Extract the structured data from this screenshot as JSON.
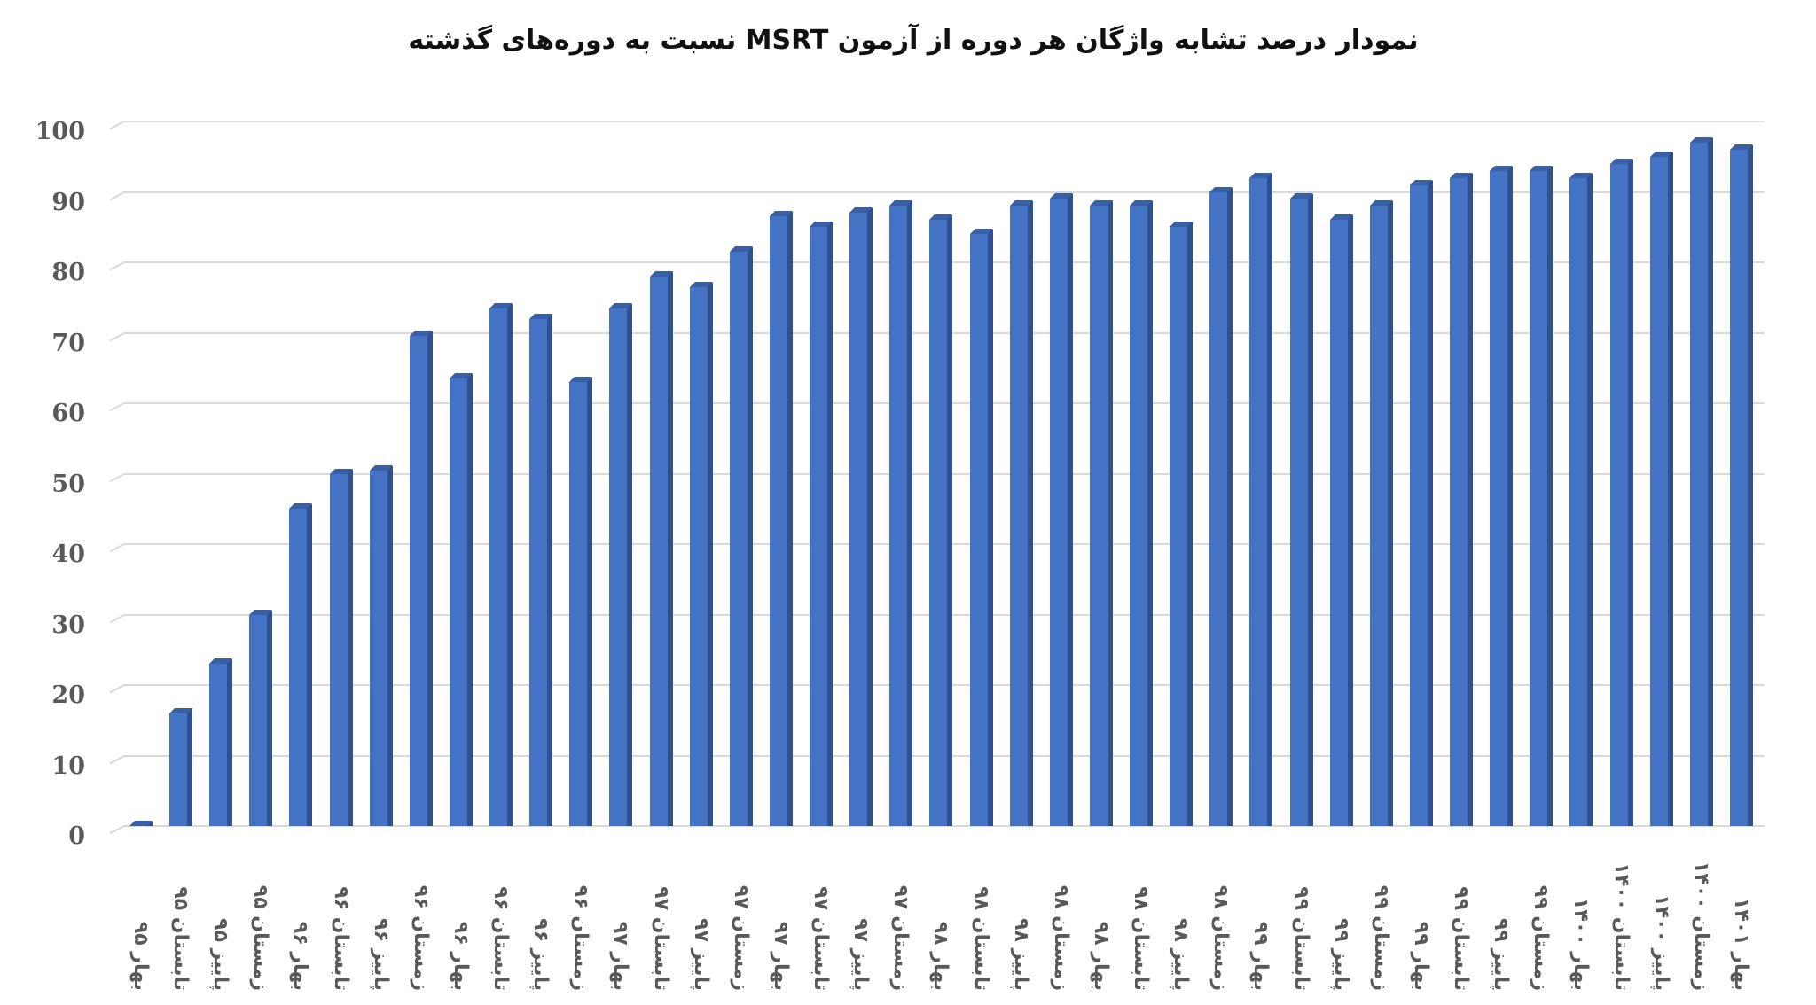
{
  "title": "نمودار درصد تشابه واژگان هر دوره از آزمون MSRT نسبت به دوره‌های گذشته",
  "colors": {
    "bar_front": "#4472c4",
    "bar_side": "#2f528f",
    "gridline": "#d9d9d9",
    "axis_text": "#595959",
    "title_text": "#111111"
  },
  "y_axis": {
    "ticks": [
      "0",
      "10",
      "20",
      "30",
      "40",
      "50",
      "60",
      "70",
      "80",
      "90",
      "100"
    ]
  },
  "chart_data": {
    "type": "bar",
    "title": "نمودار درصد تشابه واژگان هر دوره از آزمون MSRT نسبت به دوره‌های گذشته",
    "xlabel": "",
    "ylabel": "",
    "ylim": [
      0,
      100
    ],
    "yticks": [
      0,
      10,
      20,
      30,
      40,
      50,
      60,
      70,
      80,
      90,
      100
    ],
    "grid": true,
    "legend": null,
    "style": "3d-column",
    "categories": [
      "بهار ۹۵",
      "تابستان ۹۵",
      "پاییز ۹۵",
      "زمستان ۹۵",
      "بهار ۹۶",
      "تابستان ۹۶",
      "پاییز ۹۶",
      "زمستان ۹۶",
      "بهار ۹۶",
      "تابستان ۹۶",
      "پاییز ۹۶",
      "زمستان ۹۶",
      "بهار ۹۷",
      "تابستان ۹۷",
      "پاییز ۹۷",
      "زمستان ۹۷",
      "بهار ۹۷",
      "تابستان ۹۷",
      "پاییز ۹۷",
      "زمستان ۹۷",
      "بهار ۹۸",
      "تابستان ۹۸",
      "پاییز ۹۸",
      "زمستان ۹۸",
      "بهار ۹۸",
      "تابستان ۹۸",
      "پاییز ۹۸",
      "زمستان ۹۸",
      "بهار ۹۹",
      "تابستان ۹۹",
      "پاییز ۹۹",
      "زمستان ۹۹",
      "بهار ۹۹",
      "تابستان ۹۹",
      "پاییز ۹۹",
      "زمستان ۹۹",
      "بهار ۱۴۰۰",
      "تابستان ۱۴۰۰",
      "پاییز ۱۴۰۰",
      "زمستان ۱۴۰۰",
      "بهار ۱۴۰۱"
    ],
    "values": [
      0,
      16,
      23,
      30,
      45,
      50,
      50.5,
      69.5,
      63.5,
      73.5,
      72,
      63,
      73.5,
      78,
      76.5,
      81.5,
      86.5,
      85,
      87,
      88,
      86,
      84,
      88,
      89,
      88,
      88,
      85,
      90,
      92,
      89,
      86,
      88,
      91,
      92,
      93,
      93,
      92,
      94,
      95,
      97,
      96
    ]
  }
}
